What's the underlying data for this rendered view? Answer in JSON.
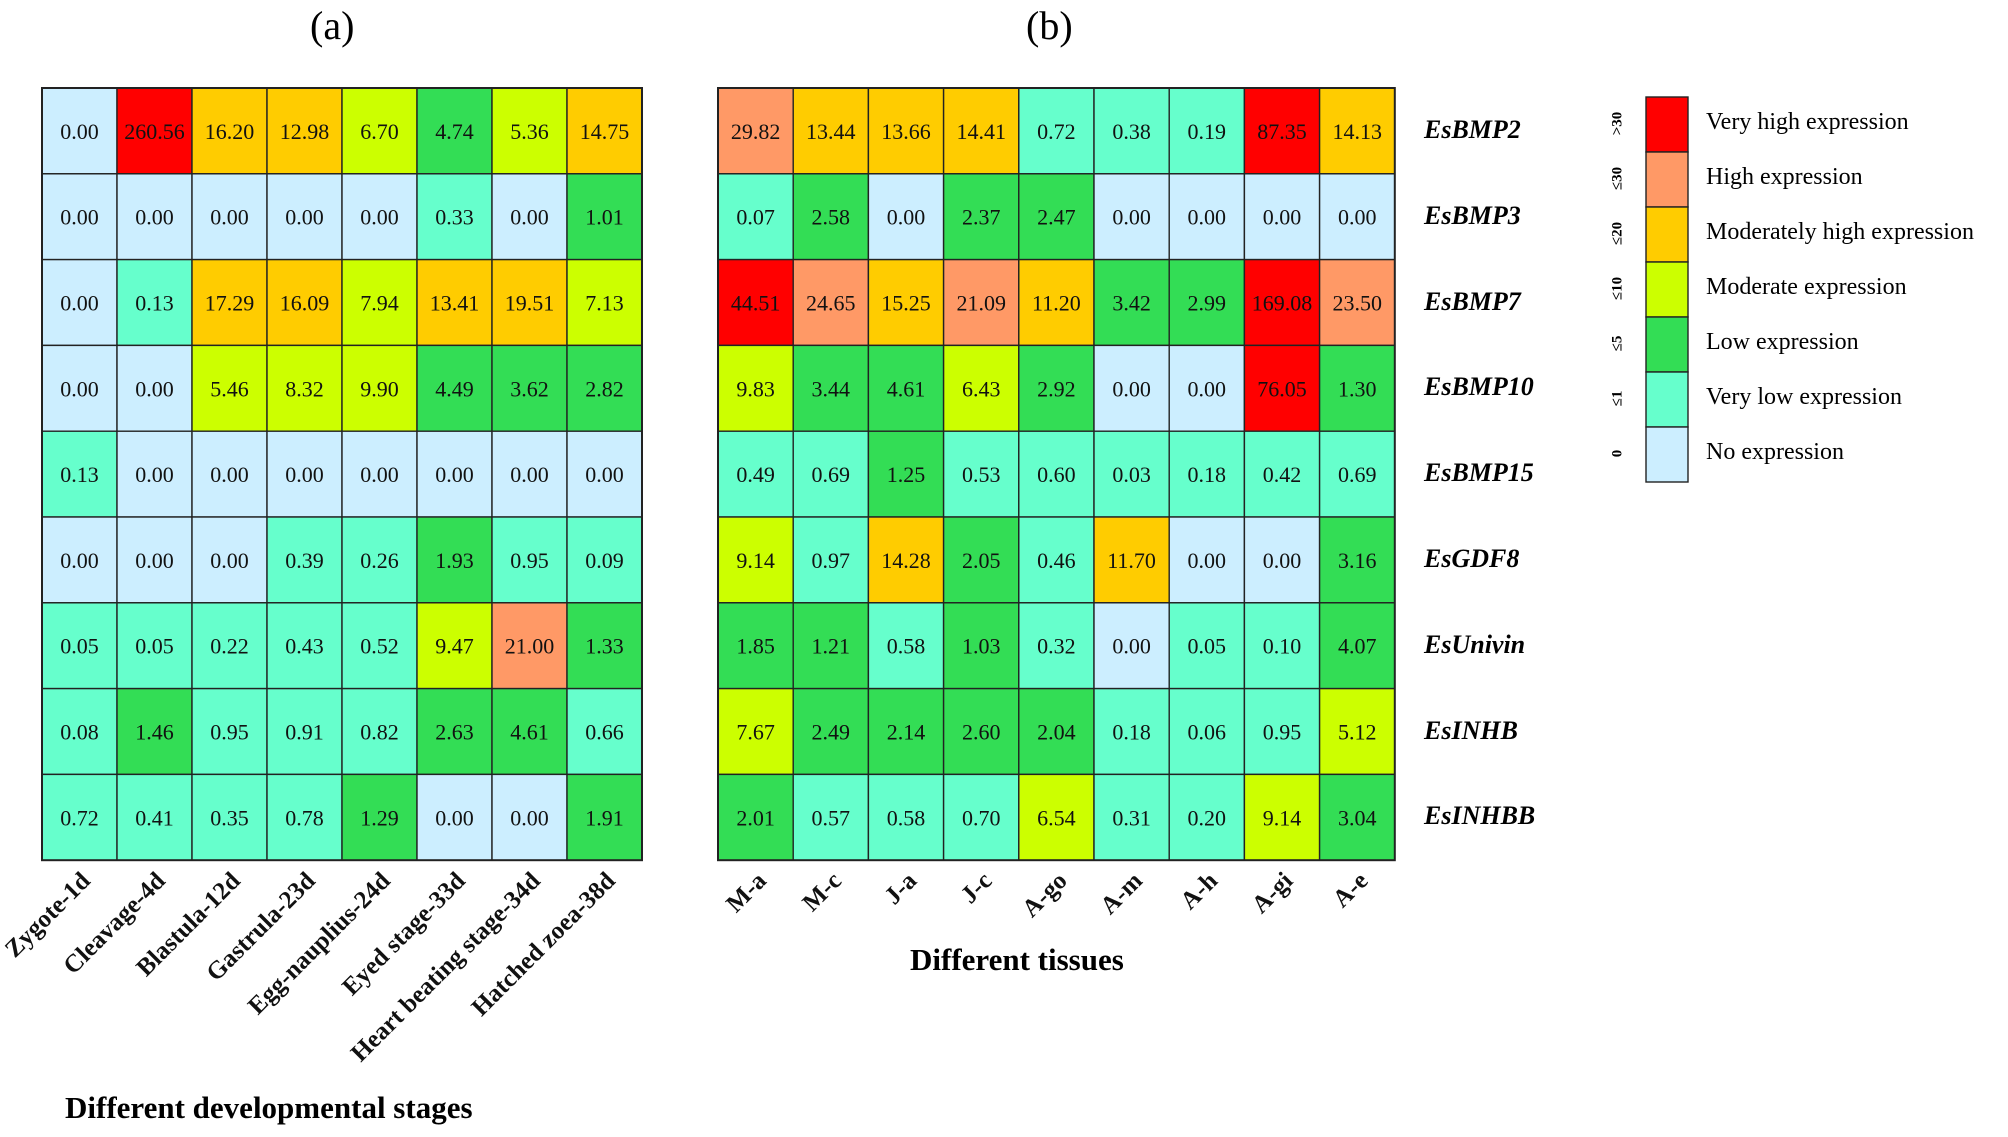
{
  "chart_data": [
    {
      "type": "heatmap",
      "panel": "(a)",
      "xlabel": "Different developmental stages",
      "categories": [
        "Zygote-1d",
        "Cleavage-4d",
        "Blastula-12d",
        "Gastrula-23d",
        "Egg-nauplius-24d",
        "Eyed stage-33d",
        "Heart beating stage-34d",
        "Hatched zoea-38d"
      ],
      "rows": [
        "EsBMP2",
        "EsBMP3",
        "EsBMP7",
        "EsBMP10",
        "EsBMP15",
        "EsGDF8",
        "EsUnivin",
        "EsINHB",
        "EsINHBB"
      ],
      "values": [
        [
          "0.00",
          "260.56",
          "16.20",
          "12.98",
          "6.70",
          "4.74",
          "5.36",
          "14.75"
        ],
        [
          "0.00",
          "0.00",
          "0.00",
          "0.00",
          "0.00",
          "0.33",
          "0.00",
          "1.01"
        ],
        [
          "0.00",
          "0.13",
          "17.29",
          "16.09",
          "7.94",
          "13.41",
          "19.51",
          "7.13"
        ],
        [
          "0.00",
          "0.00",
          "5.46",
          "8.32",
          "9.90",
          "4.49",
          "3.62",
          "2.82"
        ],
        [
          "0.13",
          "0.00",
          "0.00",
          "0.00",
          "0.00",
          "0.00",
          "0.00",
          "0.00"
        ],
        [
          "0.00",
          "0.00",
          "0.00",
          "0.39",
          "0.26",
          "1.93",
          "0.95",
          "0.09"
        ],
        [
          "0.05",
          "0.05",
          "0.22",
          "0.43",
          "0.52",
          "9.47",
          "21.00",
          "1.33"
        ],
        [
          "0.08",
          "1.46",
          "0.95",
          "0.91",
          "0.82",
          "2.63",
          "4.61",
          "0.66"
        ],
        [
          "0.72",
          "0.41",
          "0.35",
          "0.78",
          "1.29",
          "0.00",
          "0.00",
          "1.91"
        ]
      ]
    },
    {
      "type": "heatmap",
      "panel": "(b)",
      "xlabel": "Different tissues",
      "categories": [
        "M-a",
        "M-c",
        "J-a",
        "J-c",
        "A-go",
        "A-m",
        "A-h",
        "A-gi",
        "A-e"
      ],
      "rows": [
        "EsBMP2",
        "EsBMP3",
        "EsBMP7",
        "EsBMP10",
        "EsBMP15",
        "EsGDF8",
        "EsUnivin",
        "EsINHB",
        "EsINHBB"
      ],
      "values": [
        [
          "29.82",
          "13.44",
          "13.66",
          "14.41",
          "0.72",
          "0.38",
          "0.19",
          "87.35",
          "14.13"
        ],
        [
          "0.07",
          "2.58",
          "0.00",
          "2.37",
          "2.47",
          "0.00",
          "0.00",
          "0.00",
          "0.00"
        ],
        [
          "44.51",
          "24.65",
          "15.25",
          "21.09",
          "11.20",
          "3.42",
          "2.99",
          "169.08",
          "23.50"
        ],
        [
          "9.83",
          "3.44",
          "4.61",
          "6.43",
          "2.92",
          "0.00",
          "0.00",
          "76.05",
          "1.30"
        ],
        [
          "0.49",
          "0.69",
          "1.25",
          "0.53",
          "0.60",
          "0.03",
          "0.18",
          "0.42",
          "0.69"
        ],
        [
          "9.14",
          "0.97",
          "14.28",
          "2.05",
          "0.46",
          "11.70",
          "0.00",
          "0.00",
          "3.16"
        ],
        [
          "1.85",
          "1.21",
          "0.58",
          "1.03",
          "0.32",
          "0.00",
          "0.05",
          "0.10",
          "4.07"
        ],
        [
          "7.67",
          "2.49",
          "2.14",
          "2.60",
          "2.04",
          "0.18",
          "0.06",
          "0.95",
          "5.12"
        ],
        [
          "2.01",
          "0.57",
          "0.58",
          "0.70",
          "6.54",
          "0.31",
          "0.20",
          "9.14",
          "3.04"
        ]
      ]
    }
  ],
  "legend": [
    {
      "threshold": ">30",
      "label": "Very high expression",
      "color": "#ff0000"
    },
    {
      "threshold": "≤30",
      "label": "High expression",
      "color": "#ff9966"
    },
    {
      "threshold": "≤20",
      "label": "Moderately high expression",
      "color": "#ffcc00"
    },
    {
      "threshold": "≤10",
      "label": "Moderate expression",
      "color": "#ccff00"
    },
    {
      "threshold": "≤5",
      "label": "Low expression",
      "color": "#33dd55"
    },
    {
      "threshold": "≤1",
      "label": "Very low expression",
      "color": "#66ffcc"
    },
    {
      "threshold": "0",
      "label": "No expression",
      "color": "#cceeff"
    }
  ]
}
